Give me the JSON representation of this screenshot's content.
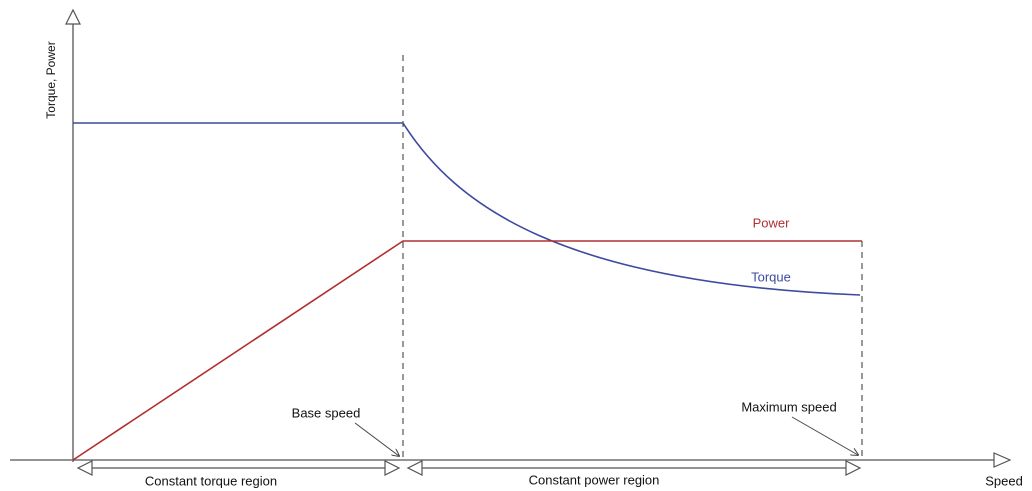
{
  "y_axis_label": "Torque, Power",
  "x_axis_label": "Speed",
  "curve_labels": {
    "power": "Power",
    "torque": "Torque"
  },
  "annotations": {
    "base_speed": "Base speed",
    "maximum_speed": "Maximum speed"
  },
  "regions": {
    "constant_torque": "Constant torque region",
    "constant_power": "Constant power region"
  }
}
